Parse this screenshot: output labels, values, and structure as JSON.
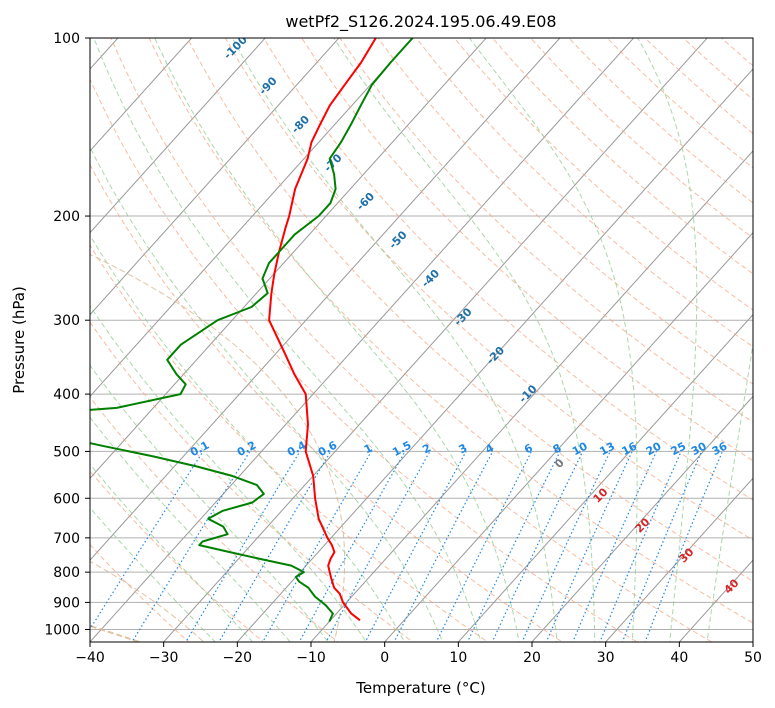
{
  "chart_data": {
    "type": "line",
    "title": "wetPf2_S126.2024.195.06.49.E08",
    "xlabel": "Temperature (°C)",
    "ylabel": "Pressure (hPa)",
    "xlim": [
      -40,
      50
    ],
    "ylim": [
      1050,
      100
    ],
    "y_scale": "log",
    "skew": true,
    "grid": true,
    "x_ticks": [
      -40,
      -30,
      -20,
      -10,
      0,
      10,
      20,
      30,
      40,
      50
    ],
    "y_ticks": [
      100,
      200,
      300,
      400,
      500,
      600,
      700,
      800,
      900,
      1000
    ],
    "series": [
      {
        "color": "#ff0000",
        "p": [
          965,
          940,
          900,
          870,
          850,
          820,
          800,
          780,
          760,
          740,
          720,
          700,
          650,
          600,
          550,
          500,
          450,
          400,
          370,
          340,
          300,
          270,
          250,
          230,
          210,
          200,
          180,
          160,
          150,
          140,
          130,
          120,
          110,
          100
        ],
        "t": [
          -6,
          -8,
          -10.5,
          -12,
          -13.5,
          -15,
          -16,
          -17,
          -17.5,
          -17.8,
          -19,
          -20.5,
          -24,
          -27,
          -30,
          -34,
          -37,
          -41,
          -45,
          -49,
          -55,
          -58,
          -60,
          -62,
          -64,
          -65,
          -67.5,
          -69.5,
          -71,
          -72,
          -73,
          -73.5,
          -74,
          -75
        ]
      },
      {
        "color": "#008000",
        "p": [
          970,
          940,
          910,
          880,
          850,
          830,
          815,
          800,
          780,
          760,
          740,
          720,
          710,
          690,
          670,
          650,
          630,
          610,
          590,
          570,
          550,
          530,
          510,
          490,
          470,
          450,
          435,
          422,
          400,
          385,
          370,
          350,
          330,
          300,
          285,
          270,
          255,
          240,
          230,
          215,
          200,
          190,
          180,
          170,
          160,
          150,
          140,
          130,
          120,
          110,
          100
        ],
        "t": [
          -10,
          -10.5,
          -12.5,
          -15,
          -17,
          -19,
          -20,
          -19.5,
          -22,
          -27,
          -32,
          -37,
          -37,
          -34.5,
          -36,
          -39,
          -38,
          -35,
          -34.5,
          -36.5,
          -41,
          -47,
          -54,
          -62,
          -70,
          -76,
          -78,
          -65,
          -58,
          -58.5,
          -61,
          -64,
          -64,
          -62,
          -59,
          -58.5,
          -61,
          -62,
          -62,
          -62,
          -61,
          -61,
          -62,
          -64,
          -66.5,
          -67,
          -67.8,
          -68.8,
          -69.8,
          -70,
          -70
        ]
      }
    ],
    "dry_adiabat_labels": [
      "-100",
      "-90",
      "-80",
      "-70",
      "-60",
      "-50",
      "-40",
      "-30",
      "-20",
      "-10"
    ],
    "moist_adiabat_labels": [
      "0",
      "10",
      "20",
      "30",
      "40"
    ],
    "mixing_ratio_labels": [
      "0.1",
      "0.2",
      "0.4",
      "0.6",
      "1",
      "1.5",
      "2",
      "3",
      "4",
      "6",
      "8",
      "10",
      "13",
      "16",
      "20",
      "25",
      "30",
      "36"
    ],
    "colors": {
      "temperature": "#ff0000",
      "dewpoint": "#008000",
      "isotherm": "#999999",
      "dry_adiabat": "#f4a582",
      "moist_adiabat": "#8fc98f",
      "mixing_ratio": "#1e88e5",
      "lcl_curve": "#d9b48f"
    }
  }
}
